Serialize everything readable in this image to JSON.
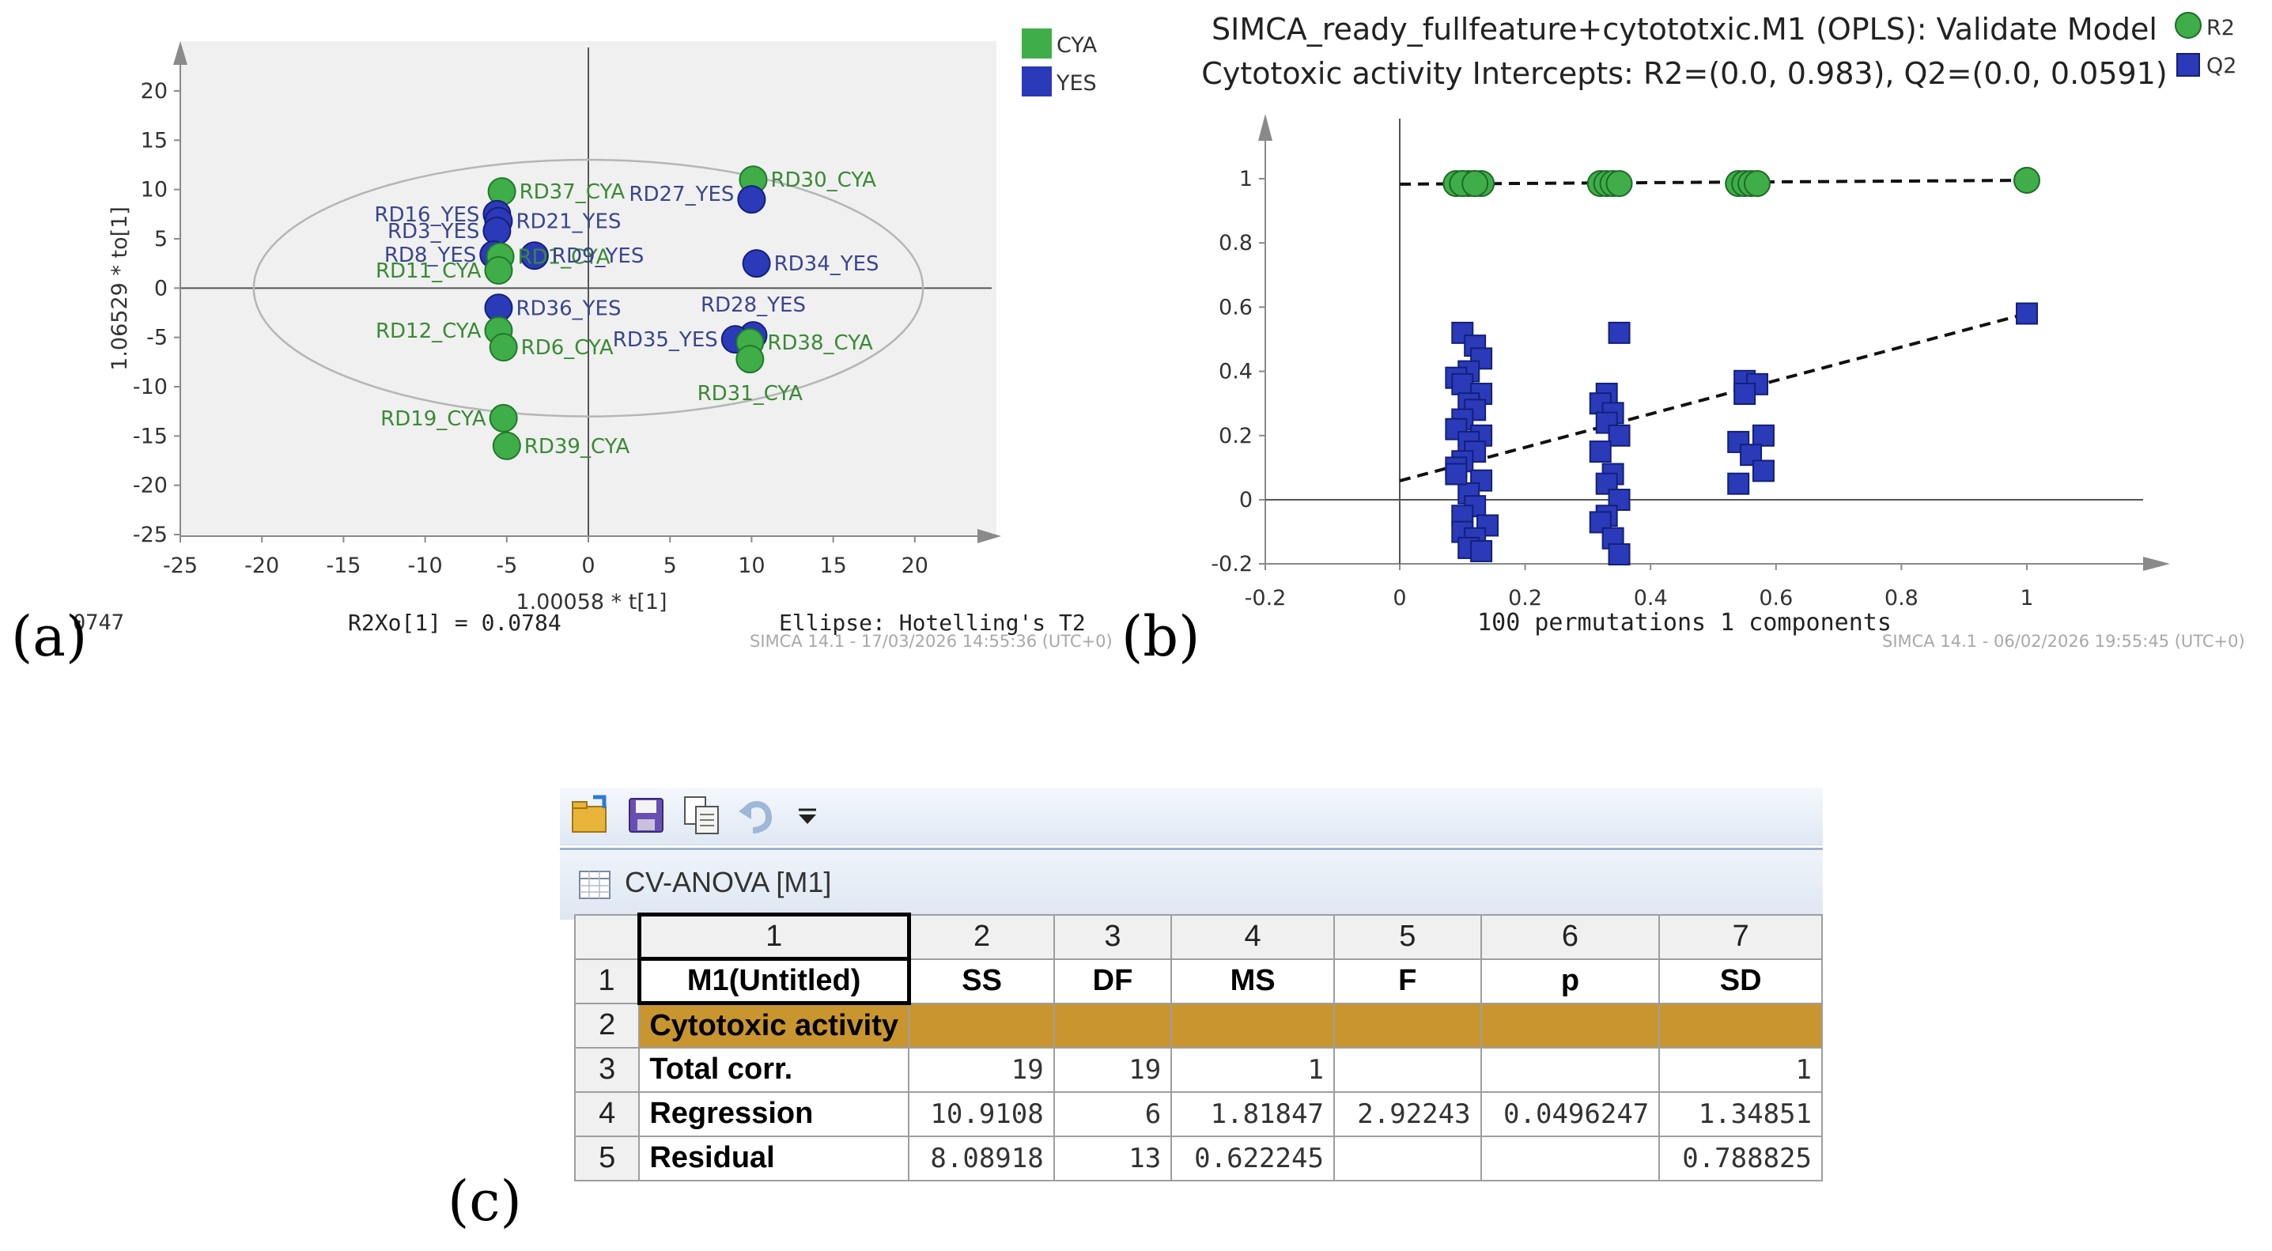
{
  "panel_labels": {
    "a": "(a)",
    "b": "(b)",
    "c": "(c)"
  },
  "colors": {
    "green": "#3fae49",
    "blue": "#2b3ab8",
    "green_text": "#3a8a35",
    "blue_text": "#3a4590",
    "gold": "#c8952f",
    "grid": "#555555"
  },
  "chart_data": [
    {
      "type": "scatter",
      "ylabel": "1.06529 * to[1]",
      "xlabel": "1.00058 * t[1]",
      "xlim": [
        -25,
        25
      ],
      "ylim": [
        -25,
        20
      ],
      "xticks": [
        "-25",
        "-20",
        "-15",
        "-10",
        "-5",
        "0",
        "5",
        "10",
        "15",
        "20"
      ],
      "yticks": [
        "-25",
        "-20",
        "-15",
        "-10",
        "-5",
        "0",
        "5",
        "10",
        "15",
        "20"
      ],
      "legend": [
        {
          "name": "CYA",
          "color": "#3fae49"
        },
        {
          "name": "YES",
          "color": "#2b3ab8"
        }
      ],
      "legend_position": "top-right",
      "footer": {
        "left": "0747",
        "center": "R2Xo[1] = 0.0784",
        "right": "Ellipse: Hotelling's T2",
        "stamp": "SIMCA 14.1 - 17/03/2026 14:55:36 (UTC+0)"
      },
      "ellipse": {
        "rx": 20.5,
        "ry": 20.5
      },
      "points": [
        {
          "label": "RD37_CYA",
          "group": "CYA",
          "x": -5.3,
          "y": 9.8
        },
        {
          "label": "RD30_CYA",
          "group": "CYA",
          "x": 10.1,
          "y": 11.0
        },
        {
          "label": "RD27_YES",
          "group": "YES",
          "x": 10.0,
          "y": 9.0
        },
        {
          "label": "RD16_YES",
          "group": "YES",
          "x": -5.6,
          "y": 7.5
        },
        {
          "label": "RD21_YES",
          "group": "YES",
          "x": -5.5,
          "y": 6.8
        },
        {
          "label": "RD3_YES",
          "group": "YES",
          "x": -5.6,
          "y": 5.8
        },
        {
          "label": "RD8_YES",
          "group": "YES",
          "x": -5.8,
          "y": 3.4
        },
        {
          "label": "RD1_CYA",
          "group": "CYA",
          "x": -5.4,
          "y": 3.2
        },
        {
          "label": "RD9_YES",
          "group": "YES",
          "x": -3.3,
          "y": 3.3
        },
        {
          "label": "RD11_CYA",
          "group": "CYA",
          "x": -5.5,
          "y": 1.8
        },
        {
          "label": "RD34_YES",
          "group": "YES",
          "x": 10.3,
          "y": 2.5
        },
        {
          "label": "RD36_YES",
          "group": "YES",
          "x": -5.5,
          "y": -2.0
        },
        {
          "label": "RD28_YES",
          "group": "YES",
          "x": 10.1,
          "y": -4.8
        },
        {
          "label": "RD12_CYA",
          "group": "CYA",
          "x": -5.5,
          "y": -4.3
        },
        {
          "label": "RD6_CYA",
          "group": "CYA",
          "x": -5.2,
          "y": -6.0
        },
        {
          "label": "RD35_YES",
          "group": "YES",
          "x": 9.0,
          "y": -5.2
        },
        {
          "label": "RD38_CYA",
          "group": "CYA",
          "x": 9.9,
          "y": -5.5
        },
        {
          "label": "RD31_CYA",
          "group": "CYA",
          "x": 9.9,
          "y": -7.2
        },
        {
          "label": "RD19_CYA",
          "group": "CYA",
          "x": -5.2,
          "y": -13.2
        },
        {
          "label": "RD39_CYA",
          "group": "CYA",
          "x": -5.0,
          "y": -16.0
        }
      ]
    },
    {
      "type": "scatter",
      "title": "SIMCA_ready_fullfeature+cytototxic.M1 (OPLS): Validate Model",
      "subtitle": "Cytotoxic activity Intercepts: R2=(0.0, 0.983), Q2=(0.0, 0.0591)",
      "xlabel": "100 permutations 1 components",
      "xlim": [
        -0.2,
        1.2
      ],
      "ylim": [
        -0.2,
        1.1
      ],
      "xticks": [
        "-0.2",
        "0",
        "0.2",
        "0.4",
        "0.6",
        "0.8",
        "1"
      ],
      "yticks": [
        "-0.2",
        "0",
        "0.2",
        "0.4",
        "0.6",
        "0.8",
        "1"
      ],
      "legend": [
        {
          "name": "R2",
          "color": "#3fae49",
          "marker": "circle"
        },
        {
          "name": "Q2",
          "color": "#2b3ab8",
          "marker": "square"
        }
      ],
      "legend_position": "top-right",
      "stamp": "SIMCA 14.1 - 06/02/2026 19:55:45 (UTC+0)",
      "regression_lines": [
        {
          "series": "R2",
          "x": [
            0,
            1
          ],
          "y": [
            0.983,
            0.995
          ]
        },
        {
          "series": "Q2",
          "x": [
            0,
            1
          ],
          "y": [
            0.0591,
            0.58
          ]
        }
      ],
      "series": [
        {
          "name": "R2",
          "x": [
            0.09,
            0.1,
            0.11,
            0.12,
            0.13,
            0.1,
            0.12,
            0.32,
            0.33,
            0.34,
            0.35,
            0.54,
            0.55,
            0.56,
            0.57,
            1.0
          ],
          "y": [
            0.985,
            0.985,
            0.985,
            0.985,
            0.985,
            0.985,
            0.985,
            0.985,
            0.985,
            0.985,
            0.985,
            0.985,
            0.985,
            0.985,
            0.985,
            0.995
          ]
        },
        {
          "name": "Q2",
          "x": [
            0.1,
            0.12,
            0.13,
            0.11,
            0.09,
            0.1,
            0.13,
            0.11,
            0.12,
            0.1,
            0.09,
            0.13,
            0.11,
            0.12,
            0.1,
            0.09,
            0.13,
            0.11,
            0.12,
            0.1,
            0.14,
            0.1,
            0.12,
            0.11,
            0.09,
            0.13,
            0.35,
            0.33,
            0.32,
            0.34,
            0.33,
            0.35,
            0.32,
            0.34,
            0.33,
            0.35,
            0.33,
            0.32,
            0.34,
            0.35,
            0.55,
            0.57,
            0.55,
            0.58,
            0.54,
            0.56,
            0.58,
            0.54,
            1.0
          ],
          "y": [
            0.52,
            0.48,
            0.44,
            0.4,
            0.38,
            0.36,
            0.33,
            0.3,
            0.28,
            0.25,
            0.22,
            0.2,
            0.18,
            0.15,
            0.12,
            0.1,
            0.06,
            0.02,
            -0.02,
            -0.05,
            -0.08,
            -0.1,
            -0.12,
            -0.15,
            0.08,
            -0.16,
            0.52,
            0.33,
            0.3,
            0.27,
            0.24,
            0.2,
            0.15,
            0.08,
            0.05,
            0.0,
            -0.05,
            -0.07,
            -0.12,
            -0.17,
            0.37,
            0.36,
            0.33,
            0.2,
            0.18,
            0.14,
            0.09,
            0.05,
            0.58
          ]
        }
      ]
    },
    {
      "type": "table",
      "title": "CV-ANOVA [M1]",
      "column_numbers": [
        "1",
        "2",
        "3",
        "4",
        "5",
        "6",
        "7"
      ],
      "row_numbers": [
        "1",
        "2",
        "3",
        "4",
        "5"
      ],
      "header": [
        "M1(Untitled)",
        "SS",
        "DF",
        "MS",
        "F",
        "p",
        "SD"
      ],
      "rows": [
        [
          "Cytotoxic activity",
          "",
          "",
          "",
          "",
          "",
          ""
        ],
        [
          "Total corr.",
          "19",
          "19",
          "1",
          "",
          "",
          "1"
        ],
        [
          "Regression",
          "10.9108",
          "6",
          "1.81847",
          "2.92243",
          "0.0496247",
          "1.34851"
        ],
        [
          "Residual",
          "8.08918",
          "13",
          "0.622245",
          "",
          "",
          "0.788825"
        ]
      ]
    }
  ]
}
